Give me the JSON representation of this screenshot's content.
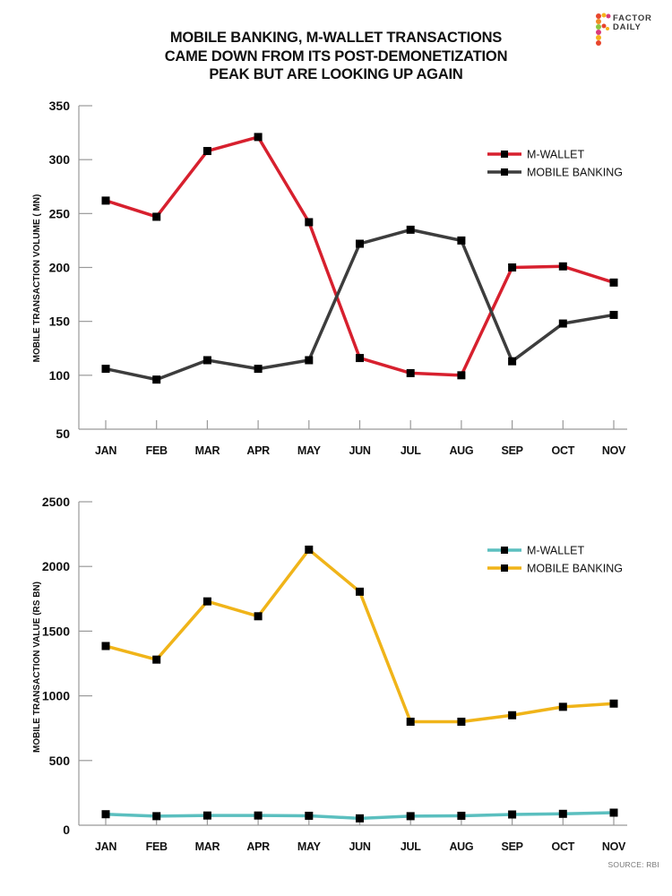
{
  "title": {
    "lines": [
      "MOBILE BANKING, M-WALLET TRANSACTIONS",
      "CAME DOWN FROM ITS POST-DEMONETIZATION",
      "PEAK BUT ARE LOOKING UP AGAIN"
    ]
  },
  "logo": {
    "line1": "FACTOR",
    "line2": "DAILY"
  },
  "source": "SOURCE: RBI",
  "colors": {
    "m_wallet_volume": "#d7202e",
    "mobile_banking_volume": "#3d3d3d",
    "m_wallet_value": "#5bbfbf",
    "mobile_banking_value": "#f0b419",
    "marker": "#000000",
    "axis": "#999999"
  },
  "chart_data": [
    {
      "type": "line",
      "title": "MOBILE BANKING, M-WALLET TRANSACTIONS CAME DOWN FROM ITS POST-DEMONETIZATION PEAK BUT ARE LOOKING UP AGAIN",
      "xlabel": "",
      "ylabel": "MOBILE  TRANSACTION VOLUME ( MN)",
      "categories": [
        "JAN",
        "FEB",
        "MAR",
        "APR",
        "MAY",
        "JUN",
        "JUL",
        "AUG",
        "SEP",
        "OCT",
        "NOV"
      ],
      "ylim": [
        50,
        350
      ],
      "yticks": [
        50,
        100,
        150,
        200,
        250,
        300,
        350
      ],
      "grid": false,
      "legend_position": "top-right",
      "series": [
        {
          "name": "M-WALLET",
          "values": [
            262,
            247,
            308,
            321,
            242,
            116,
            102,
            100,
            200,
            201,
            186
          ]
        },
        {
          "name": "MOBILE BANKING",
          "values": [
            106,
            96,
            114,
            106,
            114,
            222,
            235,
            225,
            113,
            148,
            156
          ]
        }
      ]
    },
    {
      "type": "line",
      "title": "",
      "xlabel": "",
      "ylabel": "MOBILE  TRANSACTION VALUE (RS BN)",
      "categories": [
        "JAN",
        "FEB",
        "MAR",
        "APR",
        "MAY",
        "JUN",
        "JUL",
        "AUG",
        "SEP",
        "OCT",
        "NOV"
      ],
      "ylim": [
        0,
        2500
      ],
      "yticks": [
        0,
        500,
        1000,
        1500,
        2000,
        2500
      ],
      "grid": false,
      "legend_position": "top-right",
      "series": [
        {
          "name": "M-WALLET",
          "values": [
            85,
            70,
            75,
            75,
            73,
            53,
            70,
            73,
            83,
            88,
            97
          ]
        },
        {
          "name": "MOBILE BANKING",
          "values": [
            1385,
            1280,
            1730,
            1615,
            2130,
            1805,
            800,
            800,
            850,
            915,
            940
          ]
        }
      ]
    }
  ]
}
